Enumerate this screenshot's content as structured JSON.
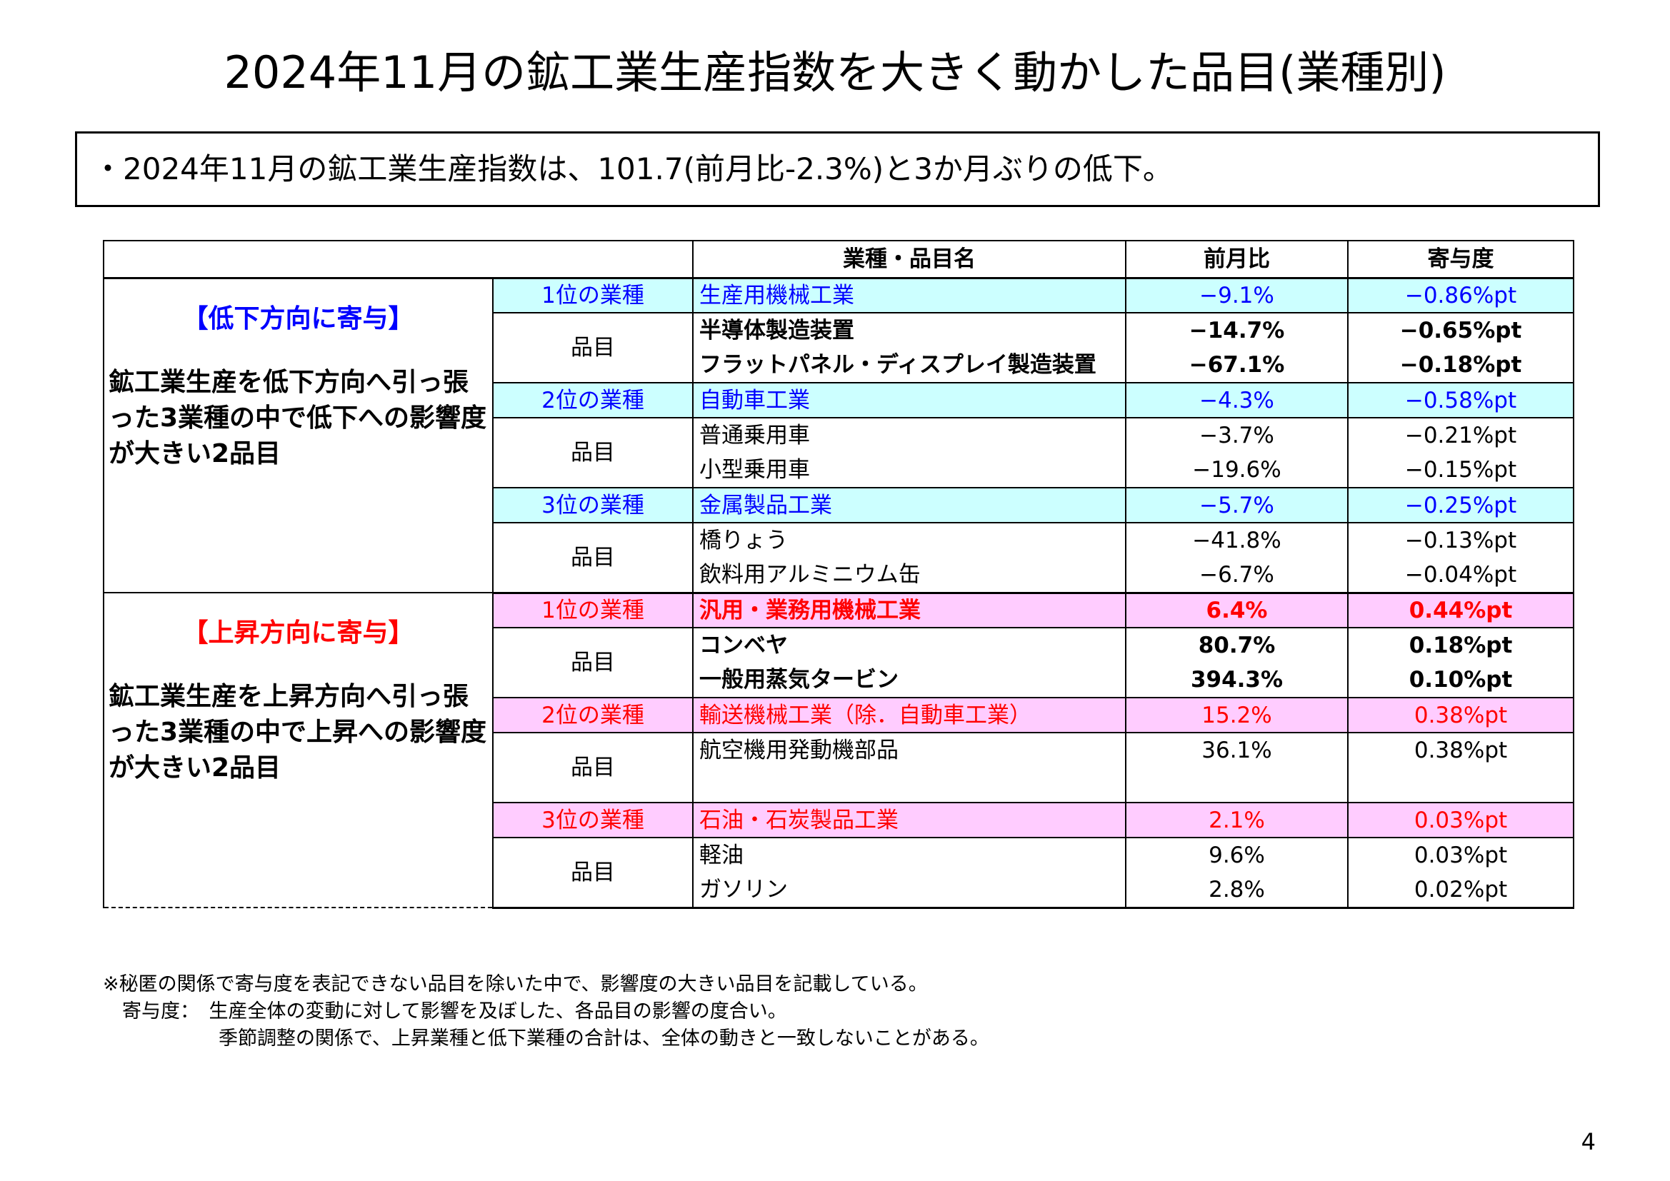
{
  "title": "2024年11月の鉱工業生産指数を大きく動かした品目(業種別)",
  "summary": "・2024年11月の鉱工業生産指数は、101.7(前月比-2.3%)と3か月ぶりの低下。",
  "table": {
    "headers": {
      "item": "業種・品目名",
      "mom": "前月比",
      "contrib": "寄与度"
    },
    "decrease": {
      "heading": "【低下方向に寄与】",
      "description": "鉱工業生産を低下方向へ引っ張った3業種の中で低下への影響度が大きい2品目",
      "groups": [
        {
          "rank": "1位の業種",
          "industry": "生産用機械工業",
          "mom": "−9.1%",
          "contrib": "−0.86%pt",
          "item_label": "品目",
          "items": [
            {
              "name": "半導体製造装置",
              "mom": "−14.7%",
              "contrib": "−0.65%pt"
            },
            {
              "name": "フラットパネル・ディスプレイ製造装置",
              "mom": "−67.1%",
              "contrib": "−0.18%pt"
            }
          ]
        },
        {
          "rank": "2位の業種",
          "industry": "自動車工業",
          "mom": "−4.3%",
          "contrib": "−0.58%pt",
          "item_label": "品目",
          "items": [
            {
              "name": "普通乗用車",
              "mom": "−3.7%",
              "contrib": "−0.21%pt"
            },
            {
              "name": "小型乗用車",
              "mom": "−19.6%",
              "contrib": "−0.15%pt"
            }
          ]
        },
        {
          "rank": "3位の業種",
          "industry": "金属製品工業",
          "mom": "−5.7%",
          "contrib": "−0.25%pt",
          "item_label": "品目",
          "items": [
            {
              "name": "橋りょう",
              "mom": "−41.8%",
              "contrib": "−0.13%pt"
            },
            {
              "name": "飲料用アルミニウム缶",
              "mom": "−6.7%",
              "contrib": "−0.04%pt"
            }
          ]
        }
      ]
    },
    "increase": {
      "heading": "【上昇方向に寄与】",
      "description": "鉱工業生産を上昇方向へ引っ張った3業種の中で上昇への影響度が大きい2品目",
      "groups": [
        {
          "rank": "1位の業種",
          "industry": "汎用・業務用機械工業",
          "mom": "6.4%",
          "contrib": "0.44%pt",
          "item_label": "品目",
          "items": [
            {
              "name": "コンベヤ",
              "mom": "80.7%",
              "contrib": "0.18%pt"
            },
            {
              "name": "一般用蒸気タービン",
              "mom": "394.3%",
              "contrib": "0.10%pt"
            }
          ]
        },
        {
          "rank": "2位の業種",
          "industry": "輸送機械工業（除．自動車工業）",
          "mom": "15.2%",
          "contrib": "0.38%pt",
          "item_label": "品目",
          "items": [
            {
              "name": "航空機用発動機部品",
              "mom": "36.1%",
              "contrib": "0.38%pt"
            }
          ]
        },
        {
          "rank": "3位の業種",
          "industry": "石油・石炭製品工業",
          "mom": "2.1%",
          "contrib": "0.03%pt",
          "item_label": "品目",
          "items": [
            {
              "name": "軽油",
              "mom": "9.6%",
              "contrib": "0.03%pt"
            },
            {
              "name": "ガソリン",
              "mom": "2.8%",
              "contrib": "0.02%pt"
            }
          ]
        }
      ]
    }
  },
  "notes": [
    "※秘匿の関係で寄与度を表記できない品目を除いた中で、影響度の大きい品目を記載している。",
    "　寄与度：　生産全体の変動に対して影響を及ぼした、各品目の影響の度合い。",
    "　　　　　　季節調整の関係で、上昇業種と低下業種の合計は、全体の動きと一致しないことがある。"
  ],
  "page_number": "4"
}
